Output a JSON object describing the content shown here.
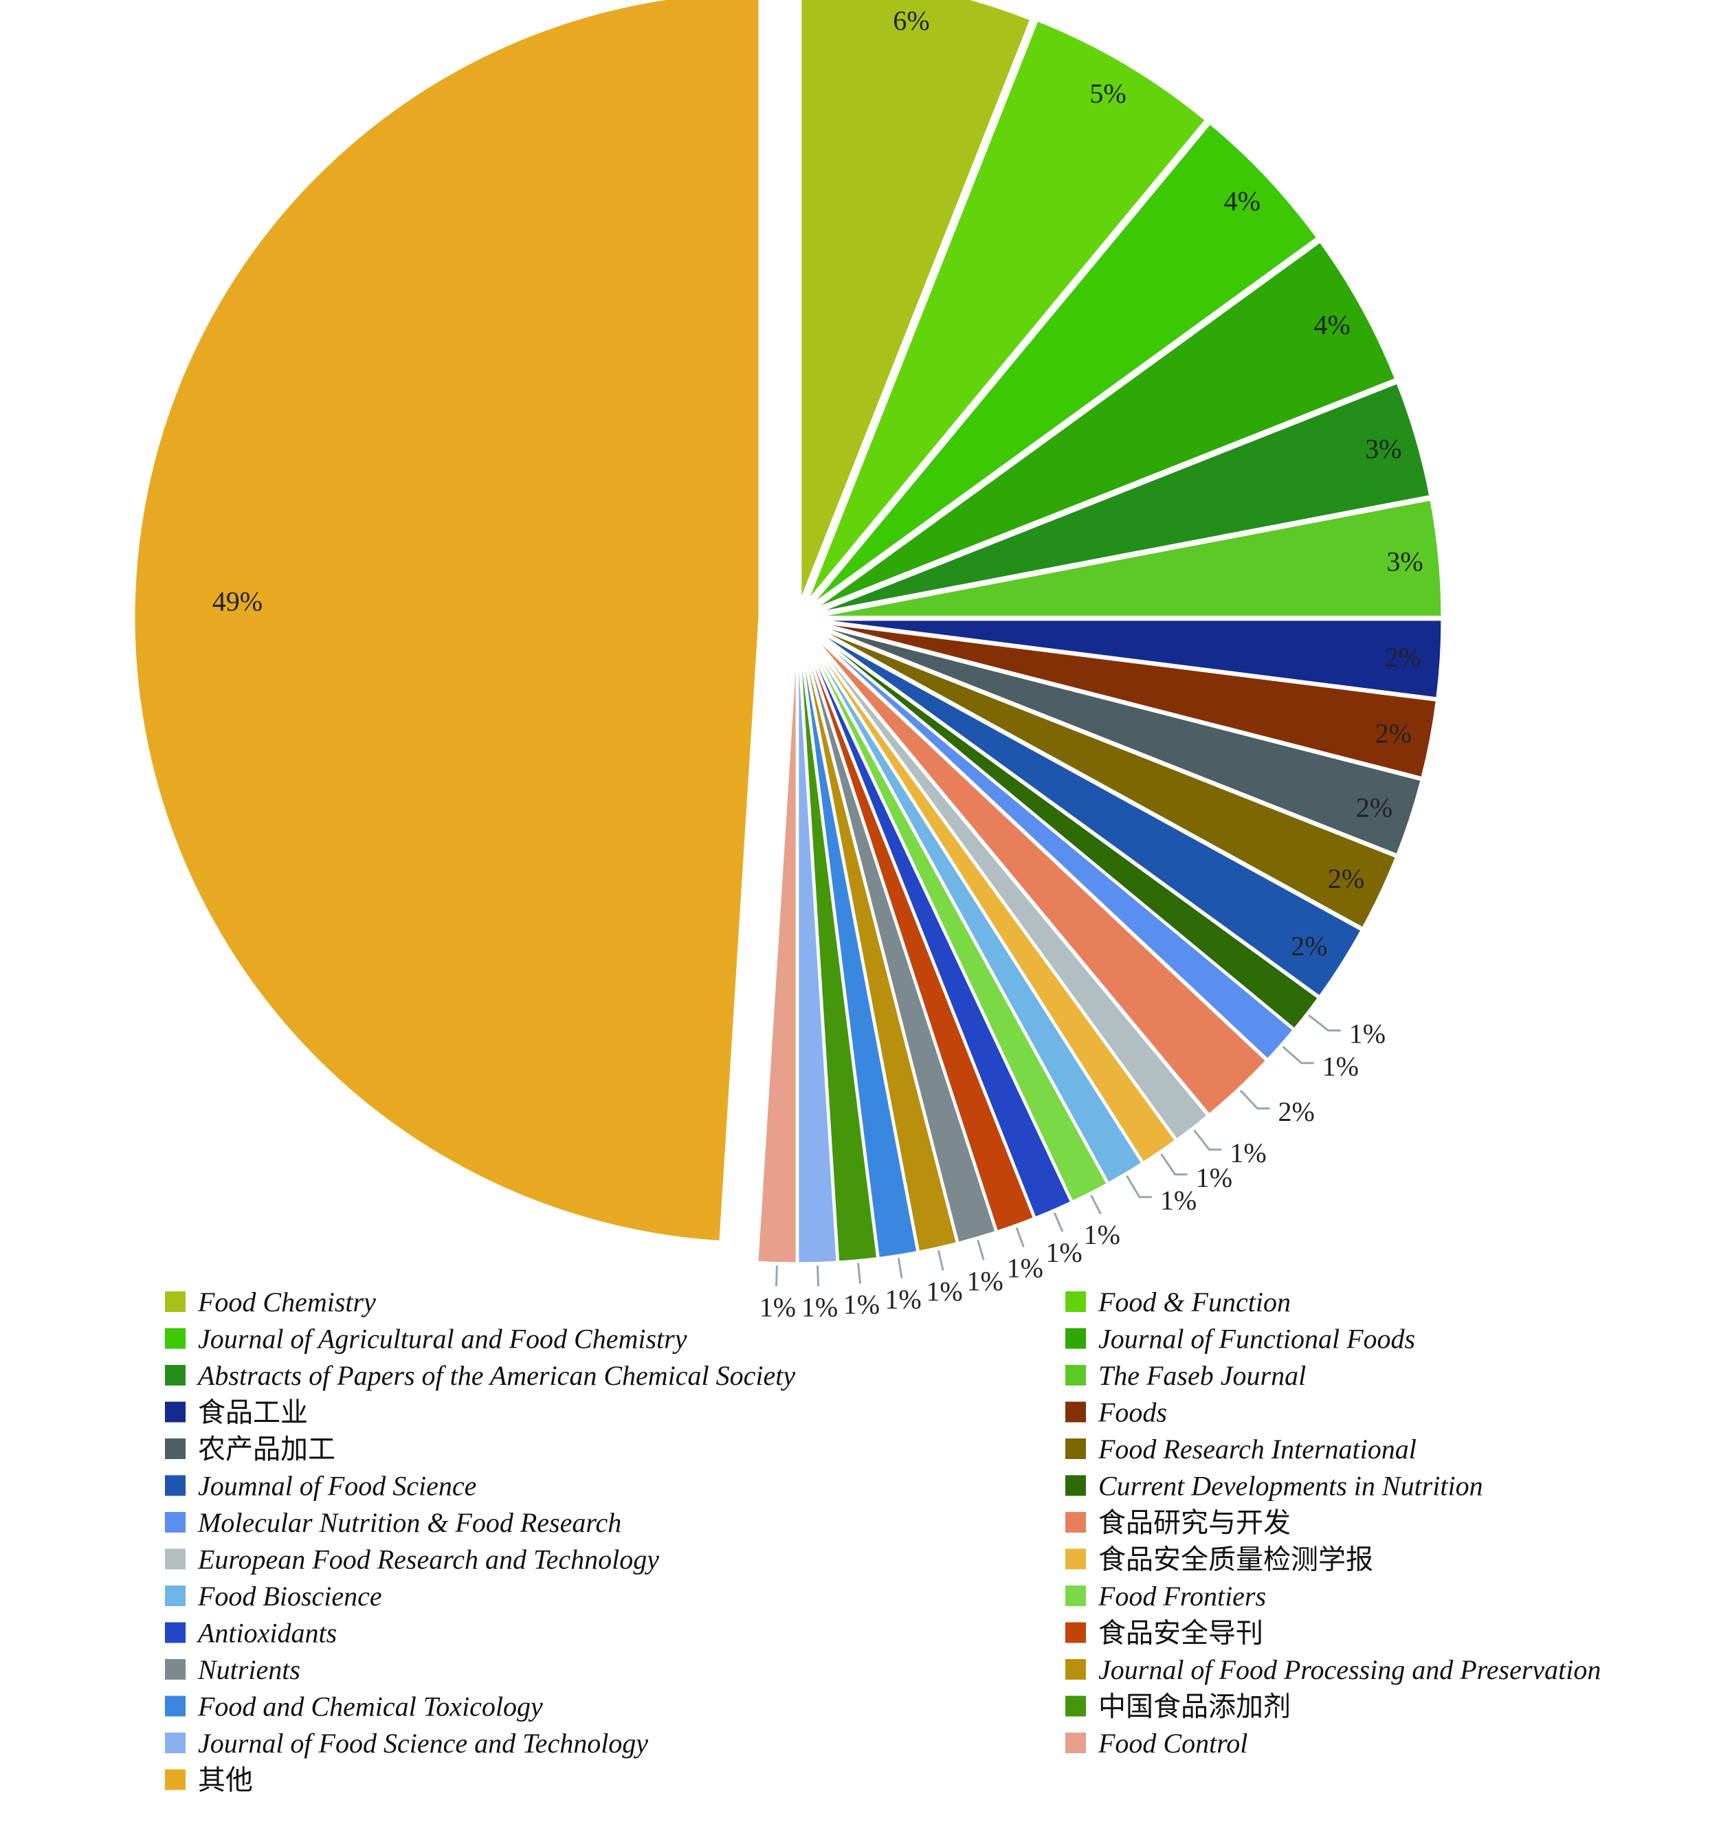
{
  "chart_data": {
    "type": "pie",
    "start_angle_deg": 0,
    "direction": "clockwise",
    "legend_position": "bottom",
    "slices": [
      {
        "label": "Food Chemistry",
        "value": 6,
        "value_label": "6%",
        "color": "#a9c21b"
      },
      {
        "label": "Food & Function",
        "value": 5,
        "value_label": "5%",
        "color": "#63d40b"
      },
      {
        "label": "Journal of Agricultural and Food Chemistry",
        "value": 4,
        "value_label": "4%",
        "color": "#3cc803"
      },
      {
        "label": "Journal of Functional Foods",
        "value": 4,
        "value_label": "4%",
        "color": "#2ea807"
      },
      {
        "label": "Abstracts of Papers of the American Chemical Society",
        "value": 3,
        "value_label": "3%",
        "color": "#238f1a"
      },
      {
        "label": "The Faseb Journal",
        "value": 3,
        "value_label": "3%",
        "color": "#5dc927"
      },
      {
        "label": "食品工业",
        "value": 2,
        "value_label": "2%",
        "color": "#142a8e"
      },
      {
        "label": "Foods",
        "value": 2,
        "value_label": "2%",
        "color": "#843006"
      },
      {
        "label": "农产品加工",
        "value": 2,
        "value_label": "2%",
        "color": "#4d5e64"
      },
      {
        "label": "Food Research International",
        "value": 2,
        "value_label": "2%",
        "color": "#7d6703"
      },
      {
        "label": "Joumnal of Food Science",
        "value": 2,
        "value_label": "2%",
        "color": "#1f56ad"
      },
      {
        "label": "Current Developments in Nutrition",
        "value": 1,
        "value_label": "1%",
        "color": "#2e6a05"
      },
      {
        "label": "Molecular Nutrition & Food Research",
        "value": 1,
        "value_label": "1%",
        "color": "#5a8ff0"
      },
      {
        "label": "食品研究与开发",
        "value": 2,
        "value_label": "2%",
        "color": "#e87f5b"
      },
      {
        "label": "European Food Research and Technology",
        "value": 1,
        "value_label": "1%",
        "color": "#b1bfc2"
      },
      {
        "label": "食品安全质量检测学报",
        "value": 1,
        "value_label": "1%",
        "color": "#eab53a"
      },
      {
        "label": "Food Bioscience",
        "value": 1,
        "value_label": "1%",
        "color": "#6fb6e6"
      },
      {
        "label": "Food Frontiers",
        "value": 1,
        "value_label": "1%",
        "color": "#7ad944"
      },
      {
        "label": "Antioxidants",
        "value": 1,
        "value_label": "1%",
        "color": "#2346c7"
      },
      {
        "label": "食品安全导刊",
        "value": 1,
        "value_label": "1%",
        "color": "#c2440a"
      },
      {
        "label": "Nutrients",
        "value": 1,
        "value_label": "1%",
        "color": "#7c8a8f"
      },
      {
        "label": "Journal of Food Processing and Preservation",
        "value": 1,
        "value_label": "1%",
        "color": "#b9900d"
      },
      {
        "label": "Food and Chemical Toxicology",
        "value": 1,
        "value_label": "1%",
        "color": "#3a87e0"
      },
      {
        "label": "中国食品添加剂",
        "value": 1,
        "value_label": "1%",
        "color": "#46960b"
      },
      {
        "label": "Journal of Food Science and Technology",
        "value": 1,
        "value_label": "1%",
        "color": "#8ab0f0"
      },
      {
        "label": "Food Control",
        "value": 1,
        "value_label": "1%",
        "color": "#e6a08c"
      },
      {
        "label": "其他",
        "value": 49,
        "value_label": "49%",
        "color": "#e8a922"
      }
    ]
  }
}
